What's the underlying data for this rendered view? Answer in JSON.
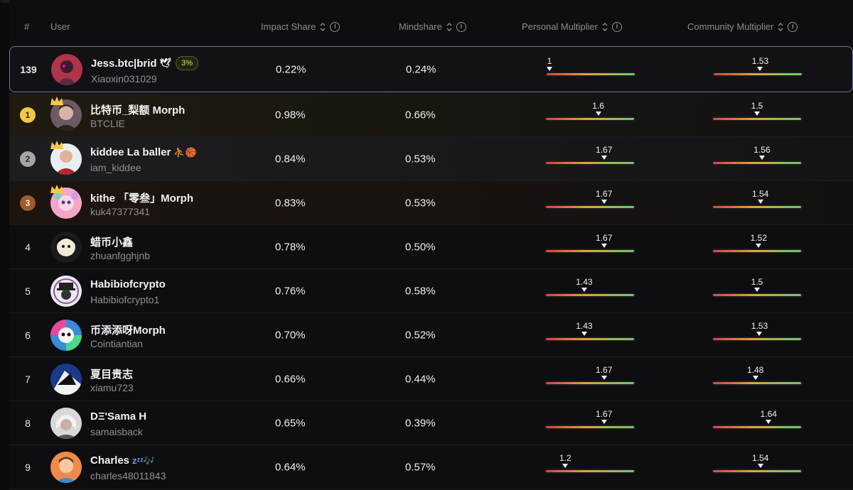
{
  "header": {
    "rank": "#",
    "user": "User",
    "impact": "Impact Share",
    "mind": "Mindshare",
    "personal": "Personal Multiplier",
    "community": "Community Multiplier"
  },
  "colors": {
    "accent_border": "#6f76a8",
    "gold": "#f3c84a",
    "silver": "#a6a6aa",
    "bronze": "#a05a2c"
  },
  "rows": [
    {
      "rank": "139",
      "name": "Jess.btc|brid",
      "name_suffix": "🕊",
      "badge": "3%",
      "handle": "Xiaoxin031029",
      "impact": "0.22%",
      "mind": "0.24%",
      "personal": "1",
      "personal_pos": 0.0,
      "community": "1.53",
      "community_pos": 0.53
    },
    {
      "rank": "1",
      "name": "比特币_梨额 Morph",
      "name_suffix": "",
      "handle": "BTCLIE",
      "impact": "0.98%",
      "mind": "0.66%",
      "personal": "1.6",
      "personal_pos": 0.6,
      "community": "1.5",
      "community_pos": 0.5
    },
    {
      "rank": "2",
      "name": "kiddee La baller",
      "name_suffix": "⛹🏀",
      "handle": "iam_kiddee",
      "impact": "0.84%",
      "mind": "0.53%",
      "personal": "1.67",
      "personal_pos": 0.67,
      "community": "1.56",
      "community_pos": 0.56
    },
    {
      "rank": "3",
      "name": "kithe 「零叁」Morph",
      "name_suffix": "",
      "handle": "kuk47377341",
      "impact": "0.83%",
      "mind": "0.53%",
      "personal": "1.67",
      "personal_pos": 0.67,
      "community": "1.54",
      "community_pos": 0.54
    },
    {
      "rank": "4",
      "name": "蜡币小鑫",
      "name_suffix": "",
      "handle": "zhuanfgghjnb",
      "impact": "0.78%",
      "mind": "0.50%",
      "personal": "1.67",
      "personal_pos": 0.67,
      "community": "1.52",
      "community_pos": 0.52
    },
    {
      "rank": "5",
      "name": "Habibiofcrypto",
      "name_suffix": "",
      "handle": "Habibiofcrypto1",
      "impact": "0.76%",
      "mind": "0.58%",
      "personal": "1.43",
      "personal_pos": 0.43,
      "community": "1.5",
      "community_pos": 0.5
    },
    {
      "rank": "6",
      "name": "币添添呀Morph",
      "name_suffix": "",
      "handle": "Cointiantian",
      "impact": "0.70%",
      "mind": "0.52%",
      "personal": "1.43",
      "personal_pos": 0.43,
      "community": "1.53",
      "community_pos": 0.53
    },
    {
      "rank": "7",
      "name": "夏目贵志",
      "name_suffix": "",
      "handle": "xiamu723",
      "impact": "0.66%",
      "mind": "0.44%",
      "personal": "1.67",
      "personal_pos": 0.67,
      "community": "1.48",
      "community_pos": 0.48
    },
    {
      "rank": "8",
      "name": "DΞ'Sama H",
      "name_suffix": "",
      "handle": "samaisback",
      "impact": "0.65%",
      "mind": "0.39%",
      "personal": "1.67",
      "personal_pos": 0.67,
      "community": "1.64",
      "community_pos": 0.64
    },
    {
      "rank": "9",
      "name": "Charles",
      "name_suffix": "zᶻᶻ🎶",
      "handle": "charles48011843",
      "impact": "0.64%",
      "mind": "0.57%",
      "personal": "1.2",
      "personal_pos": 0.2,
      "community": "1.54",
      "community_pos": 0.54
    }
  ]
}
